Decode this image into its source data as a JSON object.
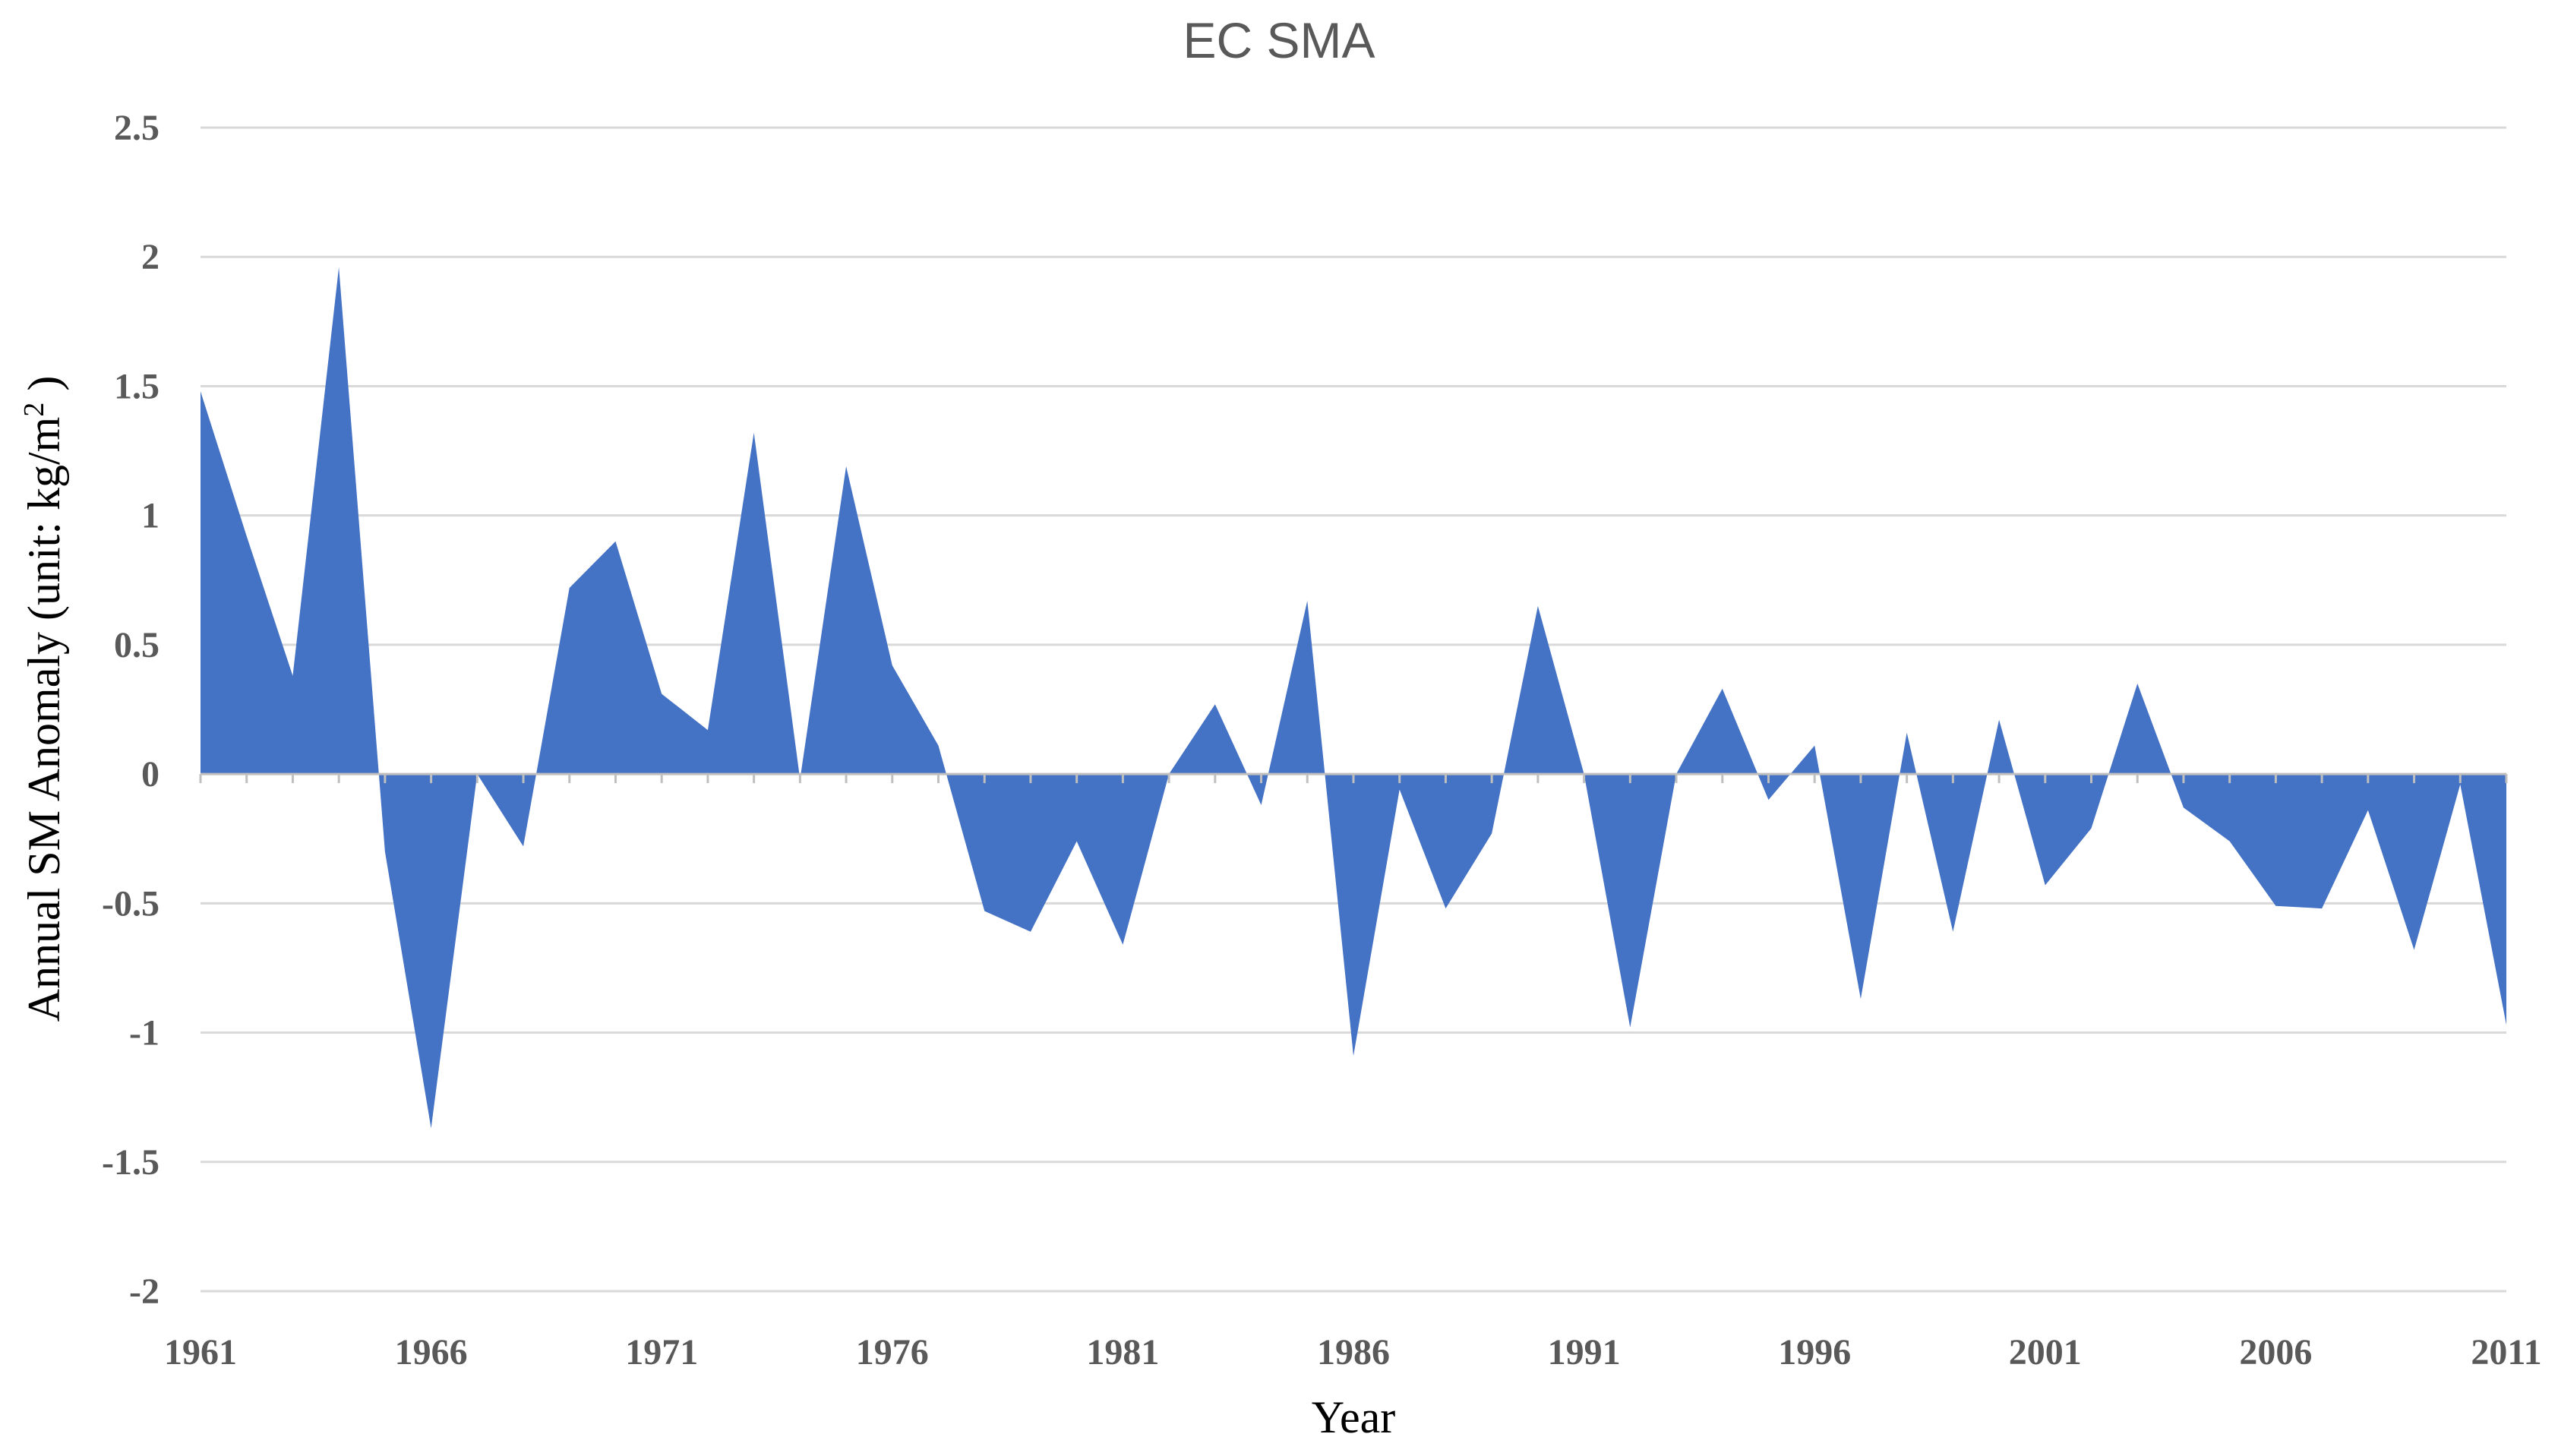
{
  "chart_data": {
    "type": "area",
    "title": "EC  SMA",
    "xlabel": "Year",
    "ylabel": "Annual SM Anomaly (unit: kg/m",
    "ylabel_sup": "2",
    "ylabel_suffix": " )",
    "xlim": [
      1961,
      2011
    ],
    "ylim": [
      -2,
      2.5
    ],
    "ytick_values": [
      -2,
      -1.5,
      -1,
      -0.5,
      0,
      0.5,
      1,
      1.5,
      2,
      2.5
    ],
    "ytick_labels": [
      "-2",
      "-1.5",
      "-1",
      "-0.5",
      "0",
      "0.5",
      "1",
      "1.5",
      "2",
      "2.5"
    ],
    "xtick_values": [
      1961,
      1966,
      1971,
      1976,
      1981,
      1986,
      1991,
      1996,
      2001,
      2006,
      2011
    ],
    "xtick_labels": [
      "1961",
      "1966",
      "1971",
      "1976",
      "1981",
      "1986",
      "1991",
      "1996",
      "2001",
      "2006",
      "2011"
    ],
    "grid": true,
    "legend": "none",
    "fill_color": "#4472c4",
    "series": [
      {
        "name": "SM Anomaly",
        "x": [
          1961,
          1962,
          1963,
          1964,
          1965,
          1966,
          1967,
          1968,
          1969,
          1970,
          1971,
          1972,
          1973,
          1974,
          1975,
          1976,
          1977,
          1978,
          1979,
          1980,
          1981,
          1982,
          1983,
          1984,
          1985,
          1986,
          1987,
          1988,
          1989,
          1990,
          1991,
          1992,
          1993,
          1994,
          1995,
          1996,
          1997,
          1998,
          1999,
          2000,
          2001,
          2002,
          2003,
          2004,
          2005,
          2006,
          2007,
          2008,
          2009,
          2010,
          2011
        ],
        "values": [
          1.48,
          0.92,
          0.38,
          1.96,
          -0.3,
          -1.37,
          0.0,
          -0.28,
          0.72,
          0.9,
          0.31,
          0.17,
          1.32,
          -0.02,
          1.19,
          0.42,
          0.11,
          -0.53,
          -0.61,
          -0.26,
          -0.66,
          0.0,
          0.27,
          -0.12,
          0.67,
          -1.09,
          -0.06,
          -0.52,
          -0.23,
          0.65,
          0.0,
          -0.98,
          0.0,
          0.33,
          -0.1,
          0.11,
          -0.87,
          0.16,
          -0.61,
          0.21,
          -0.43,
          -0.21,
          0.35,
          -0.13,
          -0.26,
          -0.51,
          -0.52,
          -0.14,
          -0.68,
          -0.04,
          -0.97
        ]
      }
    ]
  }
}
